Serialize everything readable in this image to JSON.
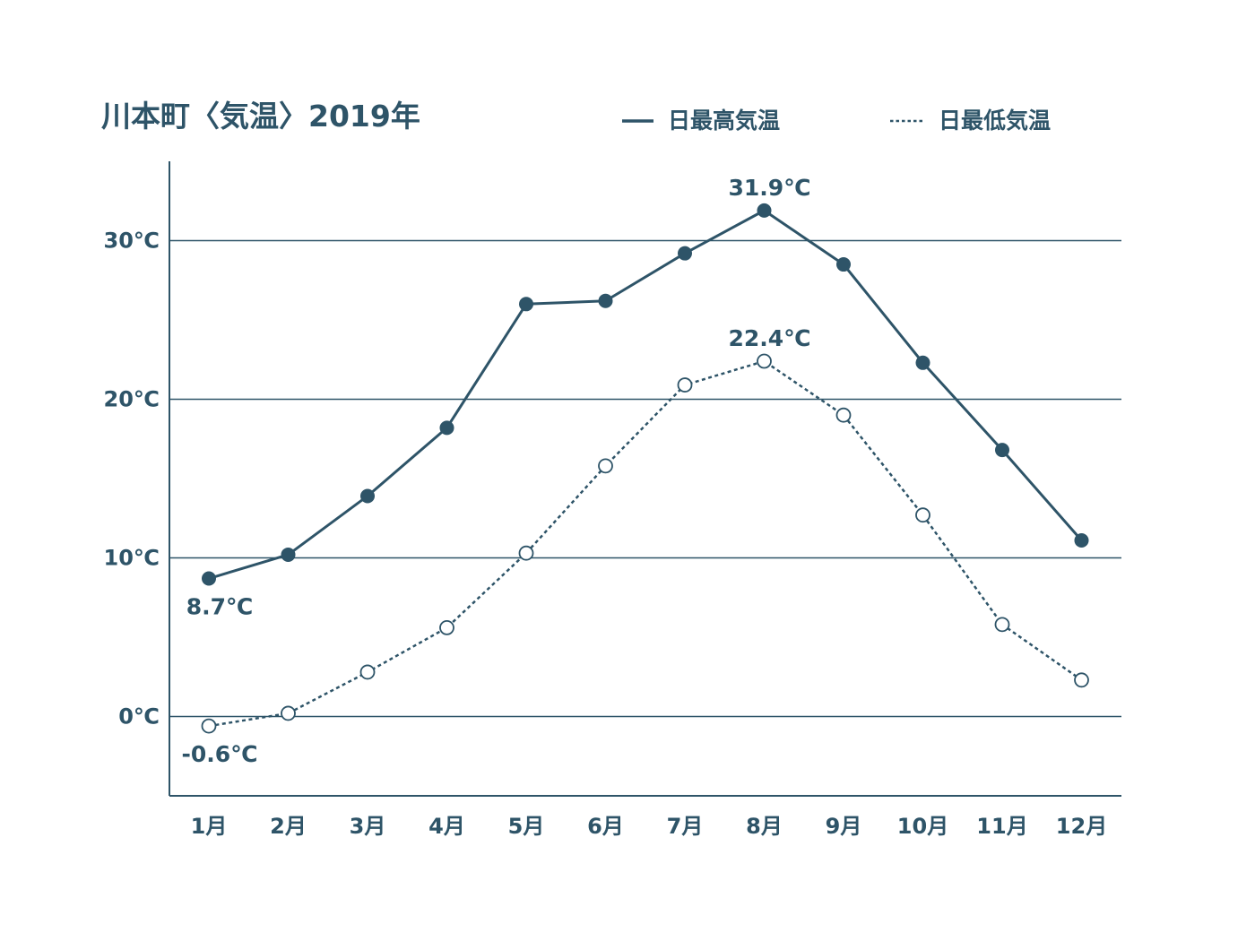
{
  "chart_data": {
    "type": "line",
    "title": "川本町〈気温〉2019年",
    "xlabel": "",
    "ylabel": "",
    "categories": [
      "1月",
      "2月",
      "3月",
      "4月",
      "5月",
      "6月",
      "7月",
      "8月",
      "9月",
      "10月",
      "11月",
      "12月"
    ],
    "y_ticks": [
      0,
      10,
      20,
      30
    ],
    "y_tick_labels": [
      "0℃",
      "10℃",
      "20℃",
      "30℃"
    ],
    "ylim": [
      -5,
      35
    ],
    "grid": true,
    "legend_position": "top-right",
    "color": "#2e5468",
    "series": [
      {
        "name": "日最高気温",
        "line_style": "solid",
        "marker": "filled-circle",
        "values": [
          8.7,
          10.2,
          13.9,
          18.2,
          26.0,
          26.2,
          29.2,
          31.9,
          28.5,
          22.3,
          16.8,
          11.1
        ]
      },
      {
        "name": "日最低気温",
        "line_style": "dotted",
        "marker": "open-circle",
        "values": [
          -0.6,
          0.2,
          2.8,
          5.6,
          10.3,
          15.8,
          20.9,
          22.4,
          19.0,
          12.7,
          5.8,
          2.3
        ]
      }
    ],
    "annotations": [
      {
        "series": 0,
        "index": 0,
        "text": "8.7℃",
        "placement": "below"
      },
      {
        "series": 0,
        "index": 7,
        "text": "31.9℃",
        "placement": "above"
      },
      {
        "series": 1,
        "index": 0,
        "text": "-0.6℃",
        "placement": "below"
      },
      {
        "series": 1,
        "index": 7,
        "text": "22.4℃",
        "placement": "above"
      }
    ]
  }
}
